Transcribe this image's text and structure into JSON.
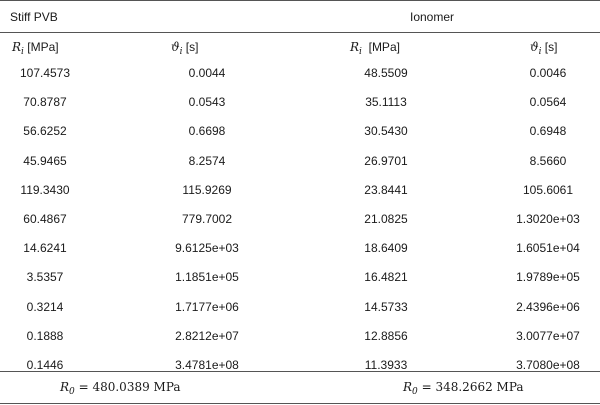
{
  "groups": {
    "left": "Stiff PVB",
    "right": "Ionomer"
  },
  "headers": {
    "r_symbol": "R",
    "r_sub": "i",
    "r_unit": " [MPa]",
    "r_unit_right": "  [MPa]",
    "theta_symbol": "ϑ",
    "theta_sub": "i",
    "theta_unit": " [s]"
  },
  "rows": [
    {
      "pvb_r": "107.4573",
      "pvb_t": "0.0044",
      "ion_r": "48.5509",
      "ion_t": "0.0046"
    },
    {
      "pvb_r": "70.8787",
      "pvb_t": "0.0543",
      "ion_r": "35.1113",
      "ion_t": "0.0564"
    },
    {
      "pvb_r": "56.6252",
      "pvb_t": "0.6698",
      "ion_r": "30.5430",
      "ion_t": "0.6948"
    },
    {
      "pvb_r": "45.9465",
      "pvb_t": "8.2574",
      "ion_r": "26.9701",
      "ion_t": "8.5660"
    },
    {
      "pvb_r": "119.3430",
      "pvb_t": "115.9269",
      "ion_r": "23.8441",
      "ion_t": "105.6061"
    },
    {
      "pvb_r": "60.4867",
      "pvb_t": "779.7002",
      "ion_r": "21.0825",
      "ion_t": "1.3020e+03"
    },
    {
      "pvb_r": "14.6241",
      "pvb_t": "9.6125e+03",
      "ion_r": "18.6409",
      "ion_t": "1.6051e+04"
    },
    {
      "pvb_r": "3.5357",
      "pvb_t": "1.1851e+05",
      "ion_r": "16.4821",
      "ion_t": "1.9789e+05"
    },
    {
      "pvb_r": "0.3214",
      "pvb_t": "1.7177e+06",
      "ion_r": "14.5733",
      "ion_t": "2.4396e+06"
    },
    {
      "pvb_r": "0.1888",
      "pvb_t": "2.8212e+07",
      "ion_r": "12.8856",
      "ion_t": "3.0077e+07"
    },
    {
      "pvb_r": "0.1446",
      "pvb_t": "3.4781e+08",
      "ion_r": "11.3933",
      "ion_t": "3.7080e+08"
    }
  ],
  "footer": {
    "r0_symbol": "R",
    "r0_sub": "0",
    "pvb_value": " = 480.0389 MPa",
    "ion_value": " = 348.2662 MPa"
  }
}
